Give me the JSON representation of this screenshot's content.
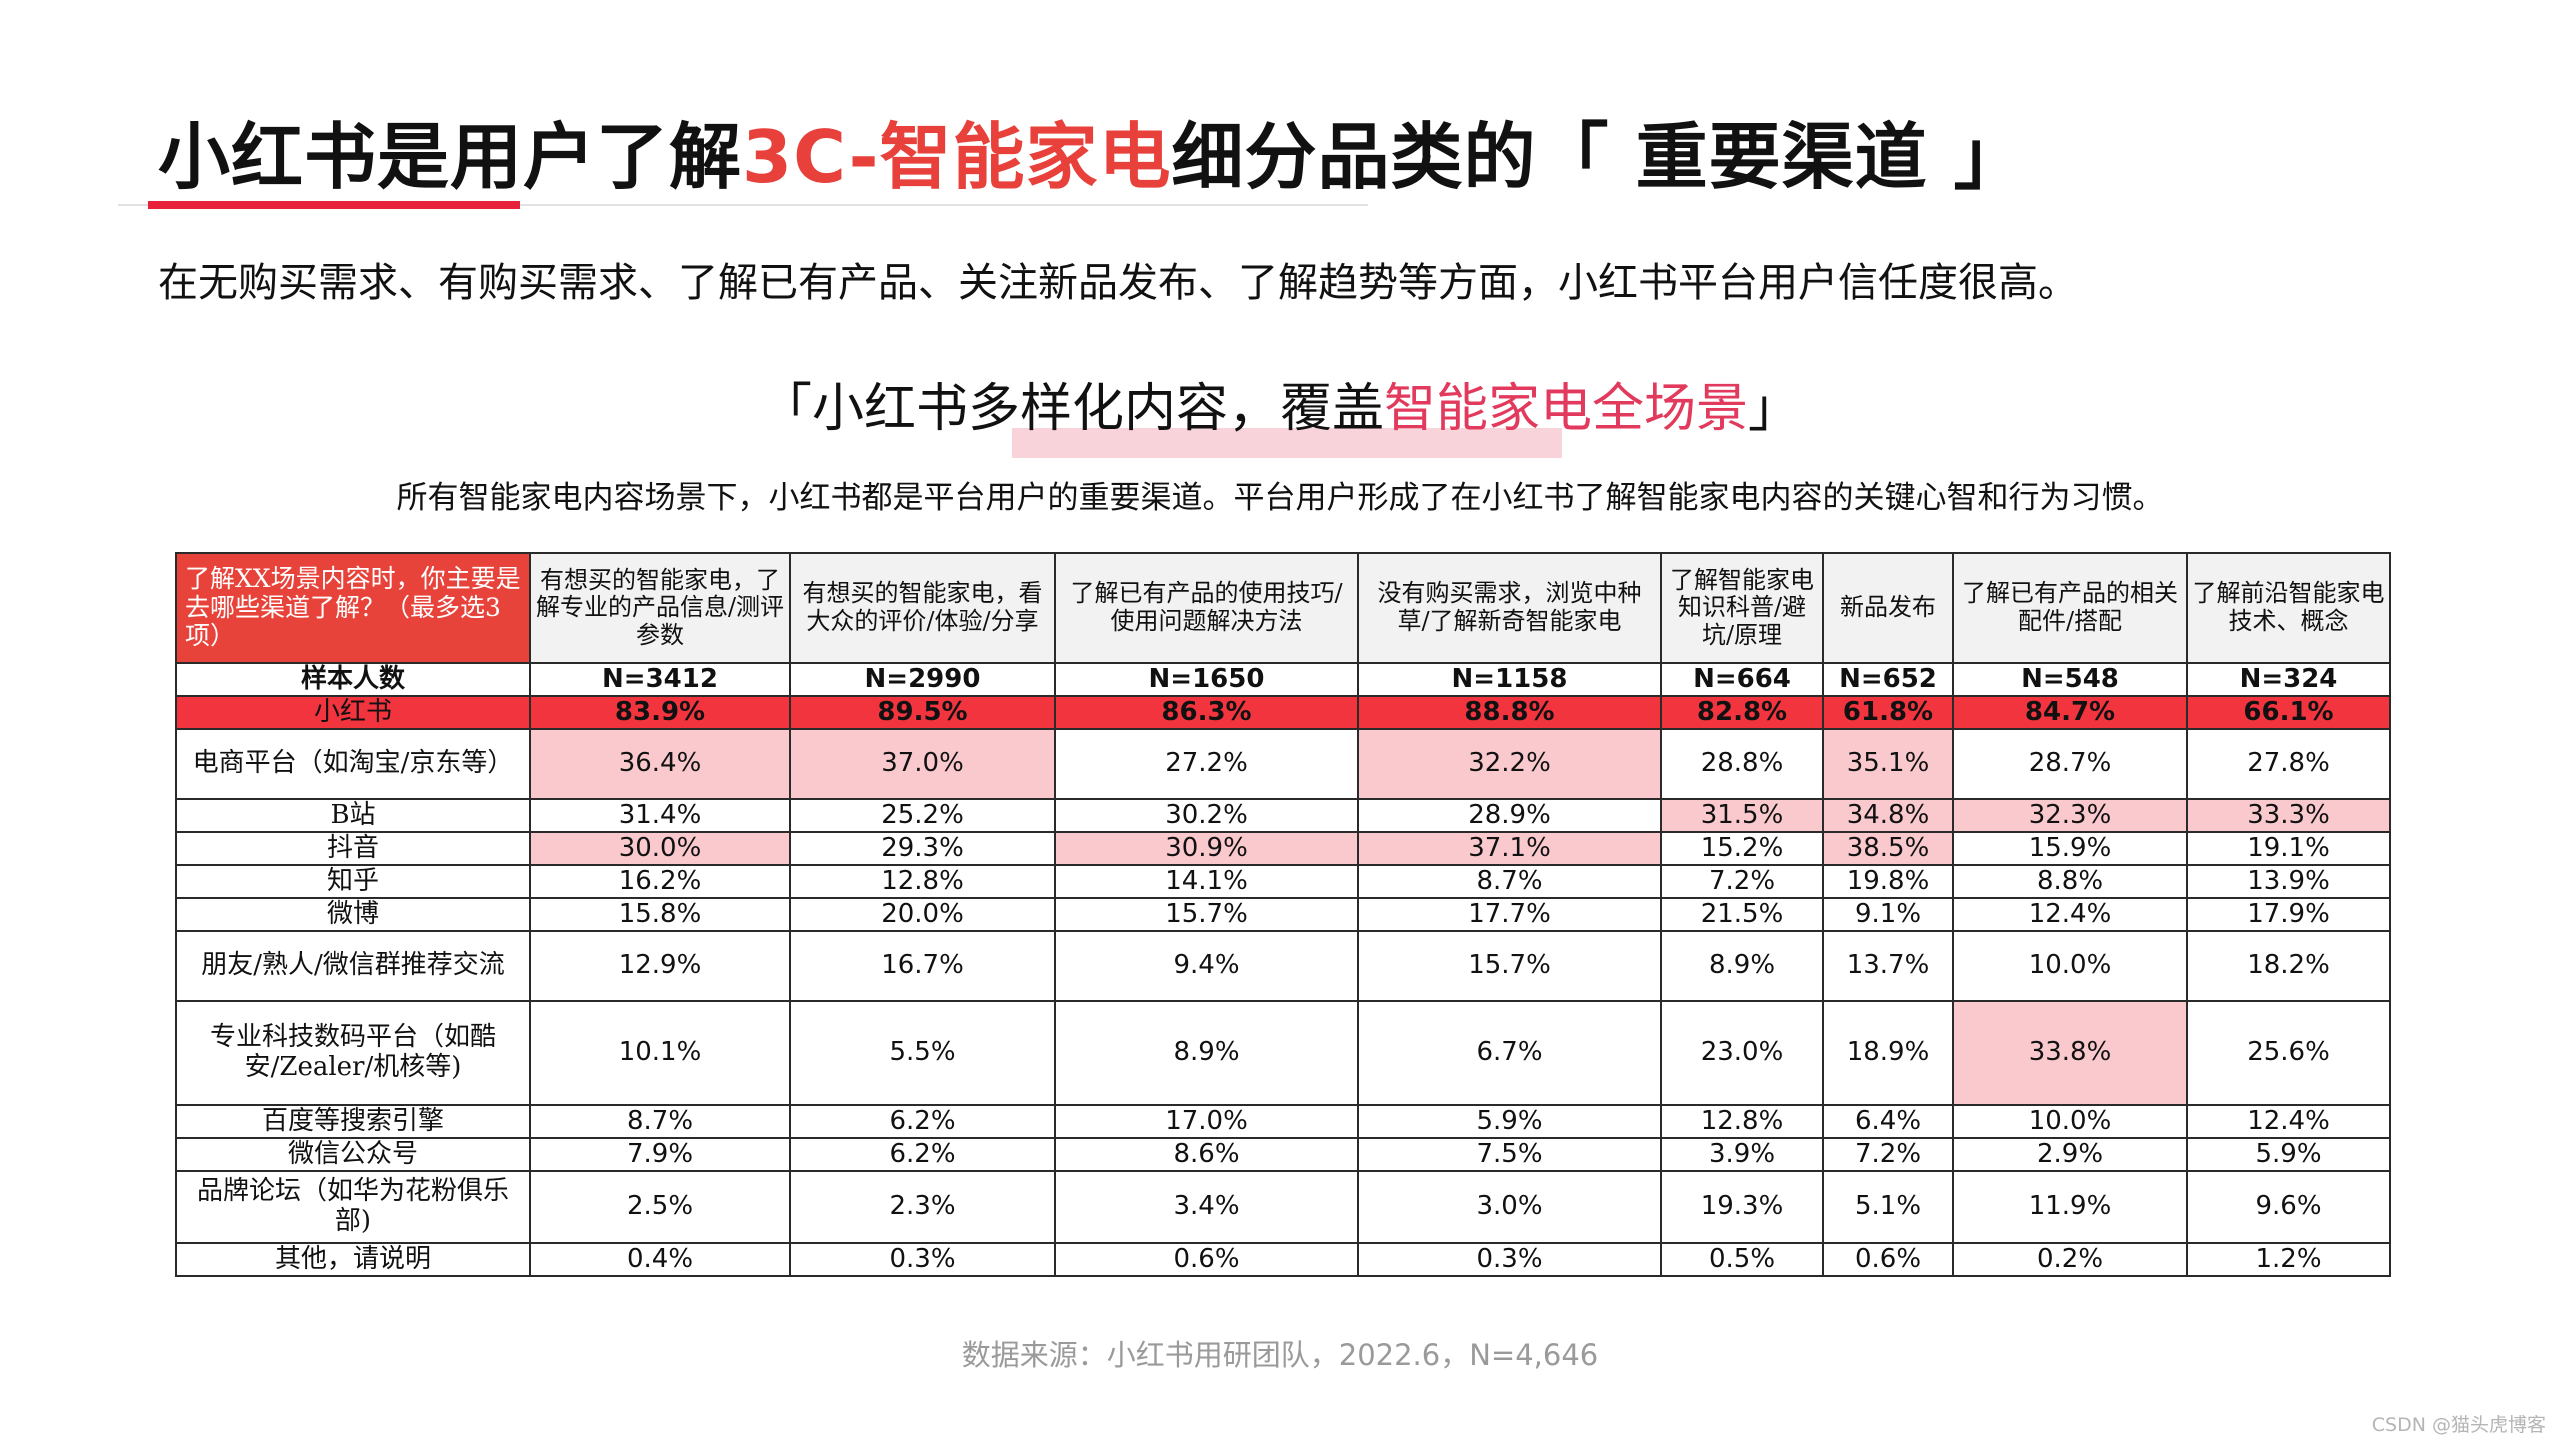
{
  "title": {
    "prefix": "小红书是用户了解",
    "accent": "3C-智能家电",
    "suffix": "细分品类的「 重要渠道 」"
  },
  "subtitle": "在无购买需求、有购买需求、了解已有产品、关注新品发布、了解趋势等方面，小红书平台用户信任度很高。",
  "banner": {
    "prefix": "「小红书多样化内容，覆盖",
    "highlight": "智能家电全场景",
    "suffix": "」"
  },
  "caption": "所有智能家电内容场景下，小红书都是平台用户的重要渠道。平台用户形成了在小红书了解智能家电内容的关键心智和行为习惯。",
  "table": {
    "corner_header": "了解XX场景内容时，你主要是去哪些渠道了解？（最多选3项）",
    "columns": [
      "有想买的智能家电，了解专业的产品信息/测评参数",
      "有想买的智能家电，看大众的评价/体验/分享",
      "了解已有产品的使用技巧/使用问题解决方法",
      "没有购买需求，浏览中种草/了解新奇智能家电",
      "了解智能家电知识科普/避坑/原理",
      "新品发布",
      "了解已有产品的相关配件/搭配",
      "了解前沿智能家电技术、概念"
    ],
    "sample_row": {
      "label": "样本人数",
      "values": [
        "N=3412",
        "N=2990",
        "N=1650",
        "N=1158",
        "N=664",
        "N=652",
        "N=548",
        "N=324"
      ]
    },
    "highlight_row": {
      "label": "小红书",
      "values": [
        "83.9%",
        "89.5%",
        "86.3%",
        "88.8%",
        "82.8%",
        "61.8%",
        "84.7%",
        "66.1%"
      ]
    },
    "rows": [
      {
        "label": "电商平台（如淘宝/京东等）",
        "values": [
          "36.4%",
          "37.0%",
          "27.2%",
          "32.2%",
          "28.8%",
          "35.1%",
          "28.7%",
          "27.8%"
        ]
      },
      {
        "label": "B站",
        "values": [
          "31.4%",
          "25.2%",
          "30.2%",
          "28.9%",
          "31.5%",
          "34.8%",
          "32.3%",
          "33.3%"
        ]
      },
      {
        "label": "抖音",
        "values": [
          "30.0%",
          "29.3%",
          "30.9%",
          "37.1%",
          "15.2%",
          "38.5%",
          "15.9%",
          "19.1%"
        ]
      },
      {
        "label": "知乎",
        "values": [
          "16.2%",
          "12.8%",
          "14.1%",
          "8.7%",
          "7.2%",
          "19.8%",
          "8.8%",
          "13.9%"
        ]
      },
      {
        "label": "微博",
        "values": [
          "15.8%",
          "20.0%",
          "15.7%",
          "17.7%",
          "21.5%",
          "9.1%",
          "12.4%",
          "17.9%"
        ]
      },
      {
        "label": "朋友/熟人/微信群推荐交流",
        "values": [
          "12.9%",
          "16.7%",
          "9.4%",
          "15.7%",
          "8.9%",
          "13.7%",
          "10.0%",
          "18.2%"
        ]
      },
      {
        "label": "专业科技数码平台（如酷安/Zealer/机核等)",
        "values": [
          "10.1%",
          "5.5%",
          "8.9%",
          "6.7%",
          "23.0%",
          "18.9%",
          "33.8%",
          "25.6%"
        ]
      },
      {
        "label": "百度等搜索引擎",
        "values": [
          "8.7%",
          "6.2%",
          "17.0%",
          "5.9%",
          "12.8%",
          "6.4%",
          "10.0%",
          "12.4%"
        ]
      },
      {
        "label": "微信公众号",
        "values": [
          "7.9%",
          "6.2%",
          "8.6%",
          "7.5%",
          "3.9%",
          "7.2%",
          "2.9%",
          "5.9%"
        ]
      },
      {
        "label": "品牌论坛（如华为花粉俱乐部)",
        "values": [
          "2.5%",
          "2.3%",
          "3.4%",
          "3.0%",
          "19.3%",
          "5.1%",
          "11.9%",
          "9.6%"
        ]
      },
      {
        "label": "其他，请说明",
        "values": [
          "0.4%",
          "0.3%",
          "0.6%",
          "0.3%",
          "0.5%",
          "0.6%",
          "0.2%",
          "1.2%"
        ]
      }
    ],
    "highlighted_cells": [
      [
        0,
        0
      ],
      [
        0,
        1
      ],
      [
        0,
        3
      ],
      [
        0,
        5
      ],
      [
        1,
        4
      ],
      [
        1,
        5
      ],
      [
        1,
        6
      ],
      [
        1,
        7
      ],
      [
        2,
        0
      ],
      [
        2,
        2
      ],
      [
        2,
        3
      ],
      [
        2,
        5
      ],
      [
        6,
        6
      ]
    ]
  },
  "source": "数据来源：小红书用研团队，2022.6，N=4,646",
  "watermark": "CSDN @猫头虎博客",
  "colors": {
    "accent_red": "#e8403a",
    "brand_row": "#f2343f",
    "cell_highlight": "#f9c9ce",
    "banner_highlight": "#e23a5c"
  }
}
